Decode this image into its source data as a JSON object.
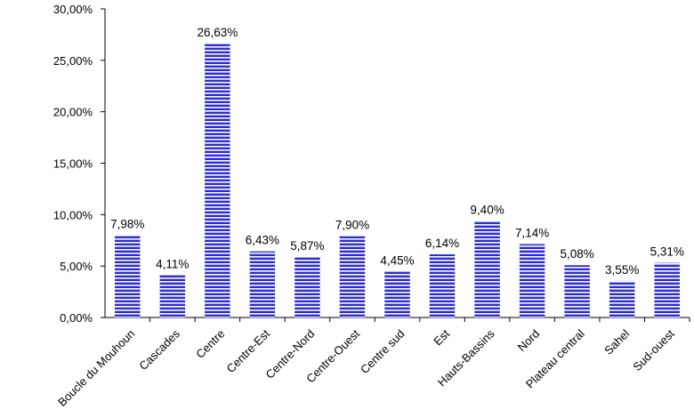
{
  "chart_data": {
    "type": "bar",
    "title": "",
    "xlabel": "",
    "ylabel": "",
    "categories": [
      "Boucle du Mouhoun",
      "Cascades",
      "Centre",
      "Centre-Est",
      "Centre-Nord",
      "Centre-Ouest",
      "Centre sud",
      "Est",
      "Hauts-Bassins",
      "Nord",
      "Plateau central",
      "Sahel",
      "Sud-ouest"
    ],
    "values": [
      7.98,
      4.11,
      26.63,
      6.43,
      5.87,
      7.9,
      4.45,
      6.14,
      9.4,
      7.14,
      5.08,
      3.55,
      5.31
    ],
    "data_labels": [
      "7,98%",
      "4,11%",
      "26,63%",
      "6,43%",
      "5,87%",
      "7,90%",
      "4,45%",
      "6,14%",
      "9,40%",
      "7,14%",
      "5,08%",
      "3,55%",
      "5,31%"
    ],
    "ylim": [
      0,
      30
    ],
    "yticks": [
      0,
      5,
      10,
      15,
      20,
      25,
      30
    ],
    "ytick_labels": [
      "0,00%",
      "5,00%",
      "10,00%",
      "15,00%",
      "20,00%",
      "25,00%",
      "30,00%"
    ],
    "grid": false,
    "legend": "none",
    "bar_color": "#2b2bd9",
    "bar_stripe_color": "#ffffff",
    "bar_pattern": "horizontal-stripes"
  }
}
